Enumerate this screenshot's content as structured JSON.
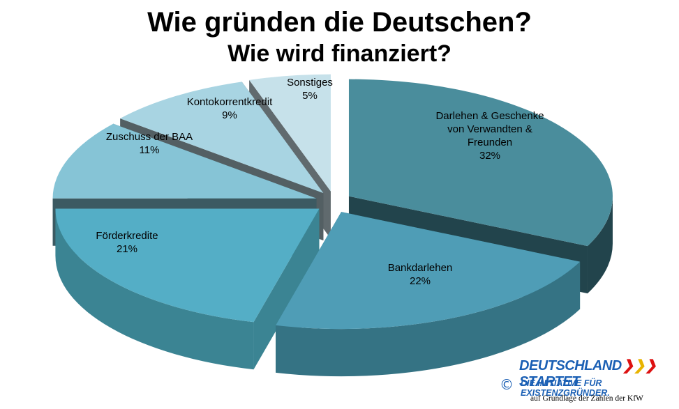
{
  "title_line1": "Wie gründen die Deutschen?",
  "title_line2": "Wie wird finanziert?",
  "chart_data": {
    "type": "pie",
    "title": "Wie gründen die Deutschen? Wie wird finanziert?",
    "slices": [
      {
        "label": "Darlehen & Geschenke von Verwandten & Freunden",
        "lines": [
          "Darlehen & Geschenke",
          "von Verwandten &",
          "Freunden"
        ],
        "value": 32,
        "display": "32%",
        "top_color": "#4a8d9c",
        "side_color": "#22444c"
      },
      {
        "label": "Bankdarlehen",
        "lines": [
          "Bankdarlehen"
        ],
        "value": 22,
        "display": "22%",
        "top_color": "#4f9db6",
        "side_color": "#357384"
      },
      {
        "label": "Förderkredite",
        "lines": [
          "Förderkredite"
        ],
        "value": 21,
        "display": "21%",
        "top_color": "#54aec6",
        "side_color": "#3b8493"
      },
      {
        "label": "Zuschuss der BAA",
        "lines": [
          "Zuschuss der BAA"
        ],
        "value": 11,
        "display": "11%",
        "top_color": "#86c4d6",
        "side_color": "#3c5a62"
      },
      {
        "label": "Kontokorrentkredit",
        "lines": [
          "Kontokorrentkredit"
        ],
        "value": 9,
        "display": "9%",
        "top_color": "#a8d4e2",
        "side_color": "#535f63"
      },
      {
        "label": "Sonstiges",
        "lines": [
          "Sonstiges"
        ],
        "value": 5,
        "display": "5%",
        "top_color": "#c6e1ea",
        "side_color": "#606a6e"
      }
    ]
  },
  "brand": {
    "name_part1": "DEUTSCHLAND",
    "name_part2": "STARTET",
    "tagline": "DIE INITIATIVE FÜR EXISTENZGRÜNDER.",
    "copyright_symbol": "©",
    "source_note": "auf Grundlage der Zahlen der KfW"
  }
}
